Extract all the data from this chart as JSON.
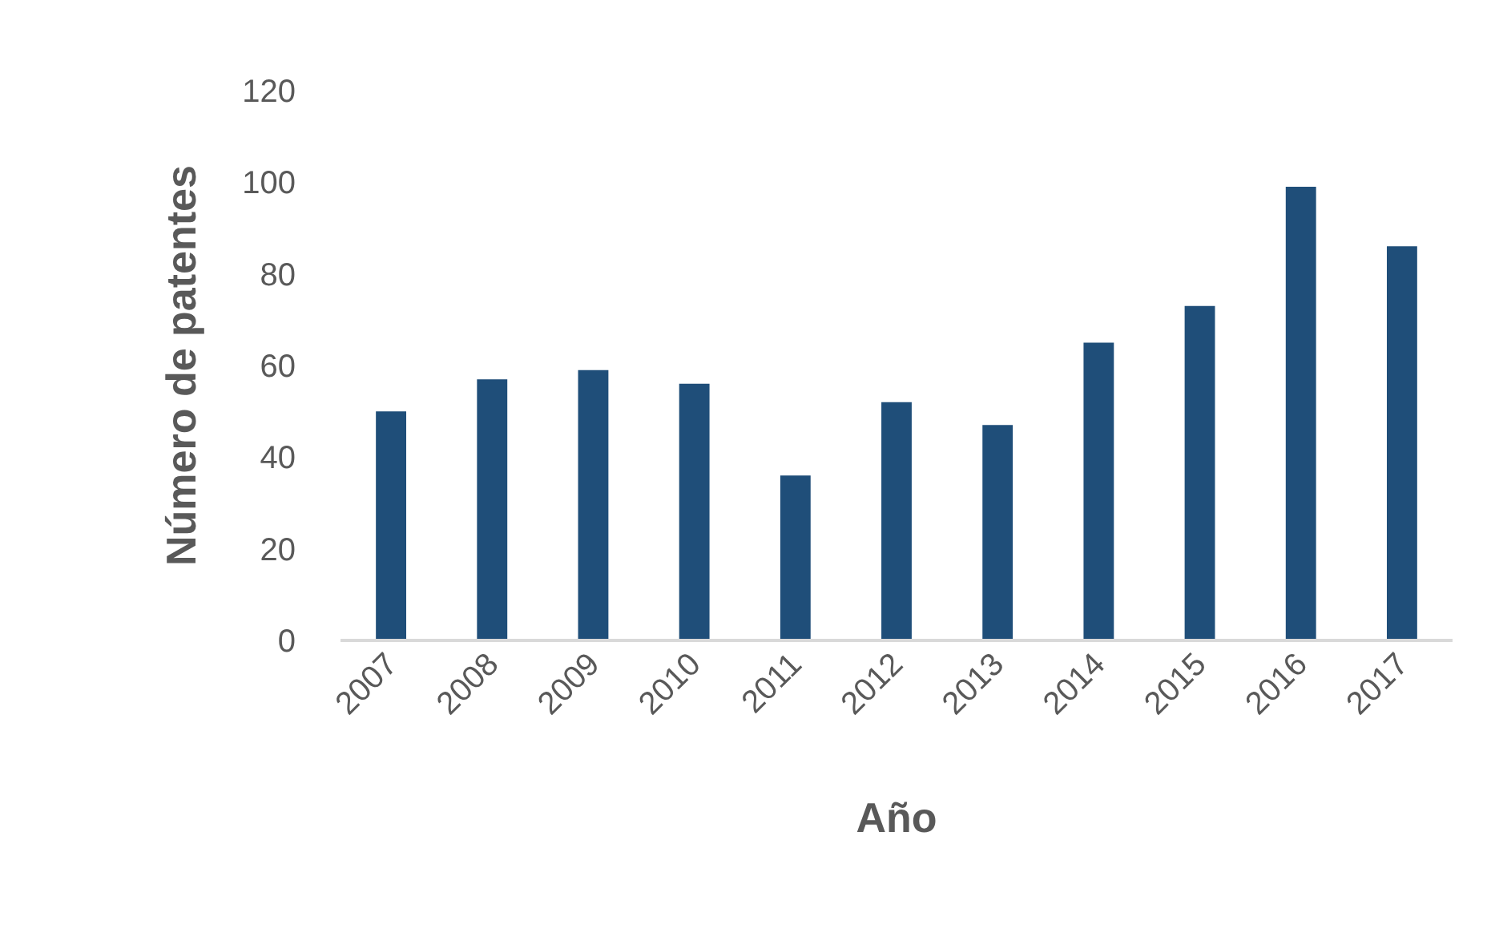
{
  "chart_data": {
    "type": "bar",
    "xlabel": "Año",
    "ylabel": "Número de patentes",
    "categories": [
      "2007",
      "2008",
      "2009",
      "2010",
      "2011",
      "2012",
      "2013",
      "2014",
      "2015",
      "2016",
      "2017"
    ],
    "values": [
      50,
      57,
      59,
      56,
      36,
      52,
      47,
      65,
      73,
      99,
      86
    ],
    "color": "#1f4e79",
    "ylim": [
      0,
      120
    ],
    "yticks": [
      0,
      20,
      40,
      60,
      80,
      100,
      120
    ],
    "grid": false
  }
}
